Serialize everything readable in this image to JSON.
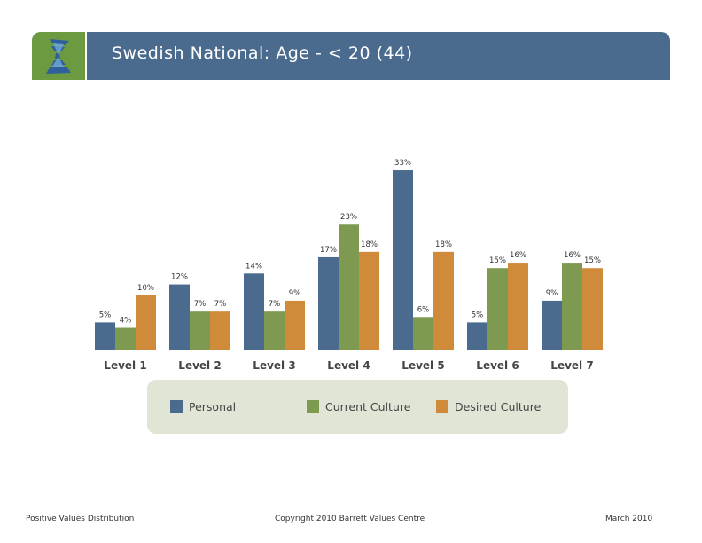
{
  "header": {
    "title": "Swedish National: Age - < 20 (44)",
    "logo_icon": "barrett-spiral-logo-icon"
  },
  "colors": {
    "header_bar": "#4a6a8e",
    "logo_bg": "#6b9a40",
    "legend_bg": "#e0e5d6"
  },
  "chart_data": {
    "type": "bar",
    "categories": [
      "Level 1",
      "Level 2",
      "Level 3",
      "Level 4",
      "Level 5",
      "Level 6",
      "Level 7"
    ],
    "series": [
      {
        "name": "Personal",
        "color": "#4a6a8e",
        "values": [
          5,
          12,
          14,
          17,
          33,
          5,
          9
        ]
      },
      {
        "name": "Current Culture",
        "color": "#7d9a50",
        "values": [
          4,
          7,
          7,
          23,
          6,
          15,
          16
        ]
      },
      {
        "name": "Desired Culture",
        "color": "#cf8a3a",
        "values": [
          10,
          7,
          9,
          18,
          18,
          16,
          15
        ]
      }
    ],
    "value_suffix": "%",
    "ylim": [
      0,
      35
    ],
    "grid": false,
    "legend_position": "bottom"
  },
  "footer": {
    "left": "Positive Values Distribution",
    "center": "Copyright 2010 Barrett Values Centre",
    "right": "March 2010"
  }
}
